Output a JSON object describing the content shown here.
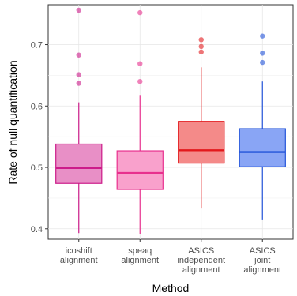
{
  "chart_data": {
    "type": "boxplot",
    "xlabel": "Method",
    "ylabel": "Rate of null quantification",
    "ylim": [
      0.383,
      0.765
    ],
    "yticks": [
      0.4,
      0.5,
      0.6,
      0.7
    ],
    "grid": true,
    "legend": "none",
    "categories": [
      {
        "label_lines": [
          "icoshift",
          "alignment"
        ],
        "color": "#CC1C8A",
        "fill": "#E88FC6",
        "whisker_low": 0.393,
        "q1": 0.474,
        "median": 0.499,
        "q3": 0.538,
        "whisker_high": 0.606,
        "outliers": [
          0.637,
          0.651,
          0.683,
          0.756
        ]
      },
      {
        "label_lines": [
          "speaq",
          "alignment"
        ],
        "color": "#E8308E",
        "fill": "#F9A1CC",
        "whisker_low": 0.392,
        "q1": 0.464,
        "median": 0.491,
        "q3": 0.527,
        "whisker_high": 0.618,
        "outliers": [
          0.64,
          0.669,
          0.752
        ]
      },
      {
        "label_lines": [
          "ASICS",
          "independent",
          "alignment"
        ],
        "color": "#E3191C",
        "fill": "#F48A89",
        "whisker_low": 0.433,
        "q1": 0.507,
        "median": 0.528,
        "q3": 0.575,
        "whisker_high": 0.663,
        "outliers": [
          0.688,
          0.697,
          0.708
        ]
      },
      {
        "label_lines": [
          "ASICS",
          "joint",
          "alignment"
        ],
        "color": "#2354D9",
        "fill": "#89A5F5",
        "whisker_low": 0.414,
        "q1": 0.501,
        "median": 0.525,
        "q3": 0.563,
        "whisker_high": 0.64,
        "outliers": [
          0.671,
          0.686,
          0.714
        ]
      }
    ]
  }
}
